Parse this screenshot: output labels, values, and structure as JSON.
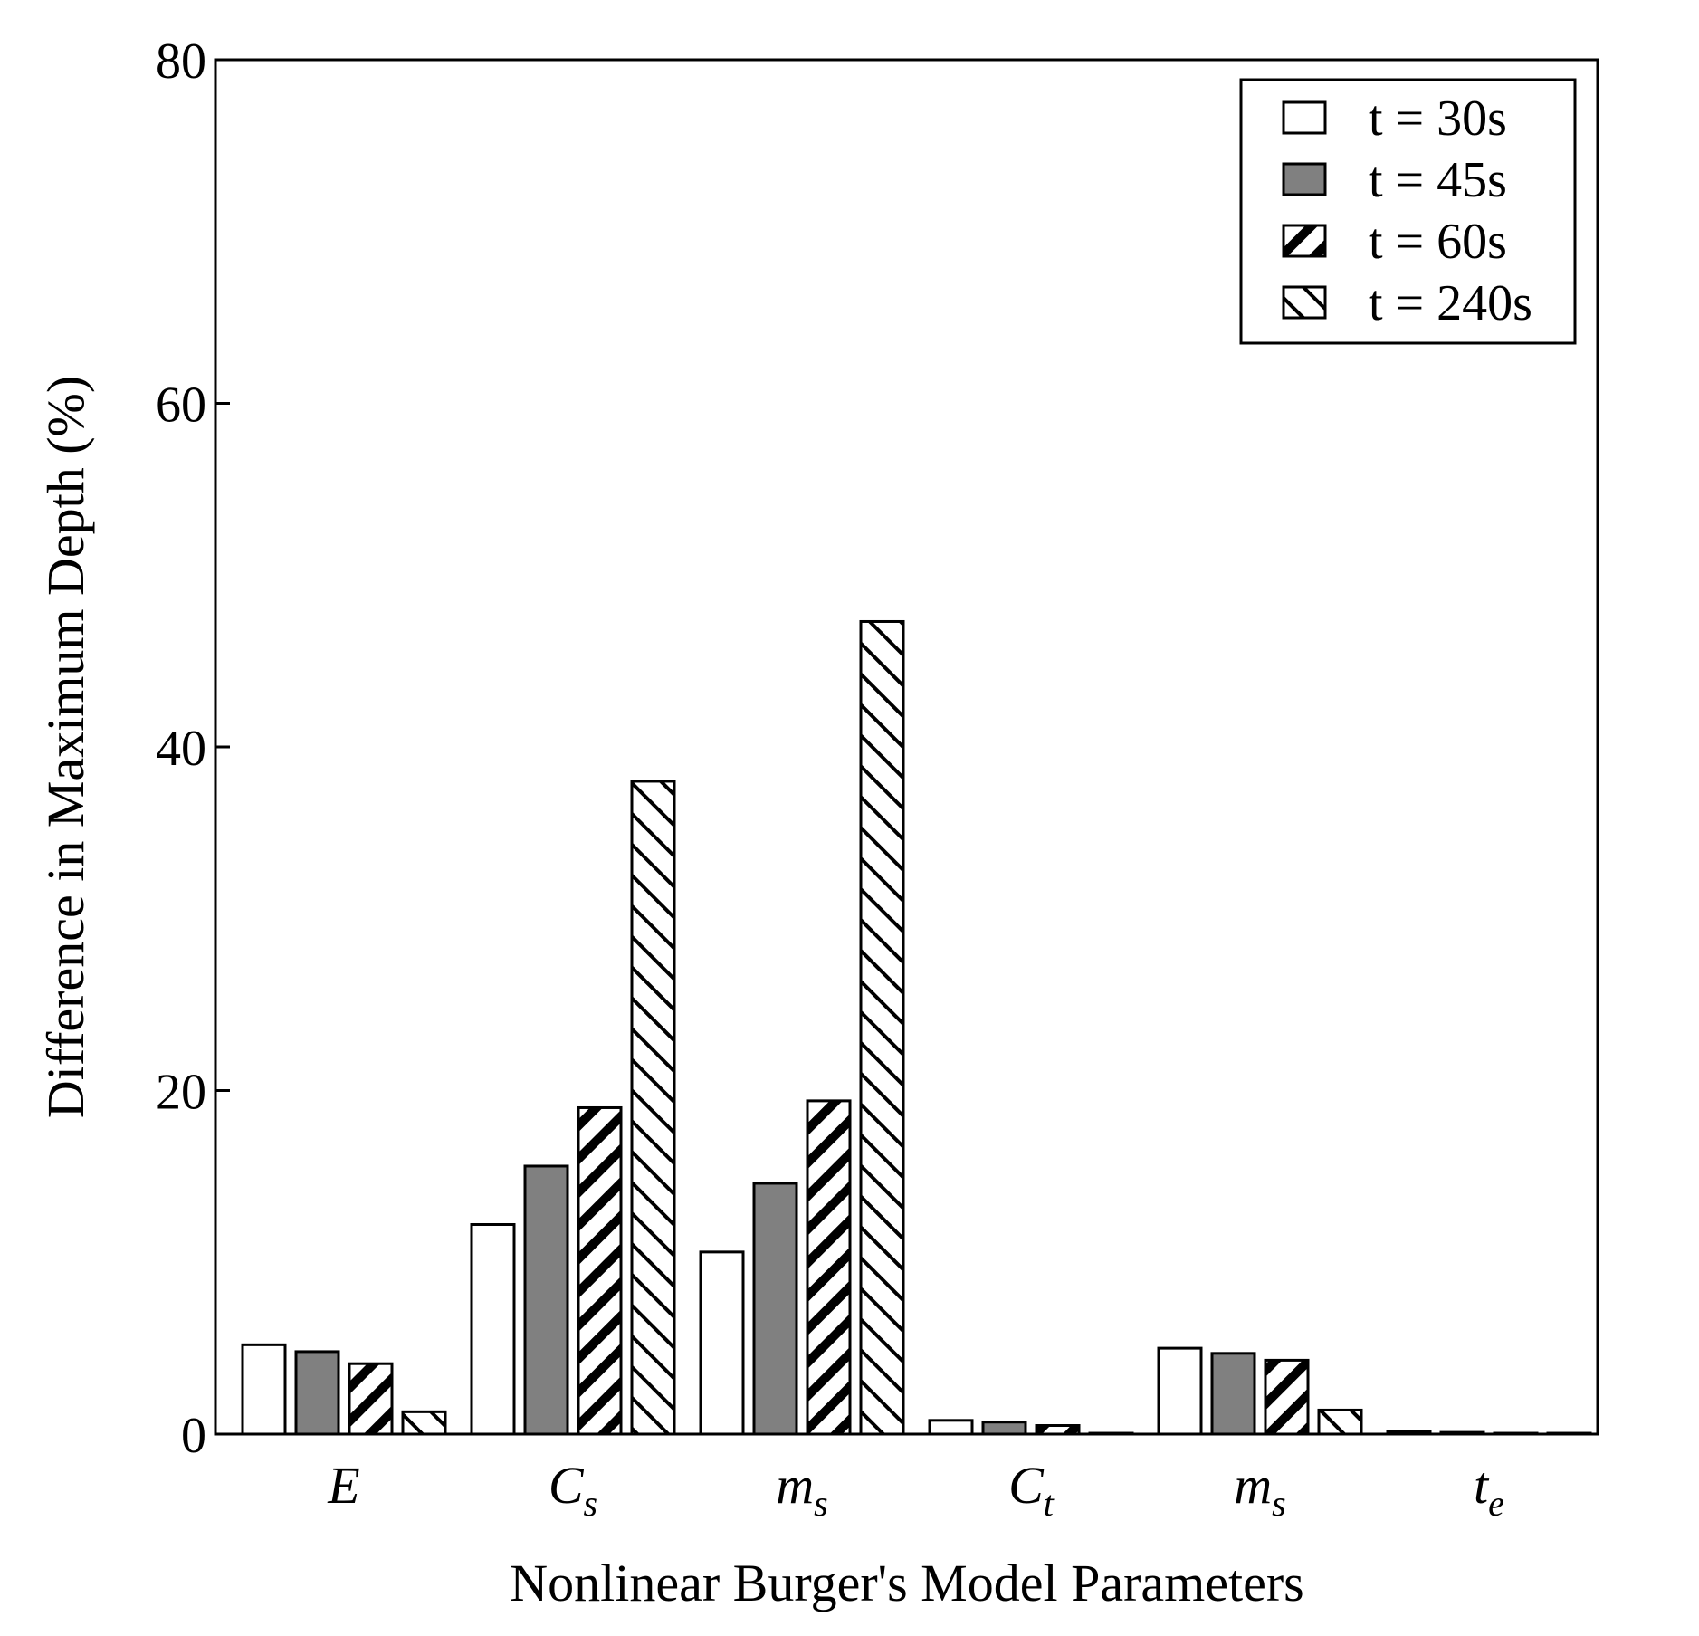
{
  "chart_data": {
    "type": "bar",
    "categories": [
      {
        "main": "E",
        "sub": ""
      },
      {
        "main": "C",
        "sub": "s"
      },
      {
        "main": "m",
        "sub": "s"
      },
      {
        "main": "C",
        "sub": "t"
      },
      {
        "main": "m",
        "sub": "s"
      },
      {
        "main": "t",
        "sub": "e"
      }
    ],
    "series": [
      {
        "name": "t = 30s",
        "fill": "#ffffff",
        "hatch": "none",
        "values": [
          5.2,
          12.2,
          10.6,
          0.8,
          5.0,
          0.15
        ]
      },
      {
        "name": "t = 45s",
        "fill": "#808080",
        "hatch": "none",
        "values": [
          4.8,
          15.6,
          14.6,
          0.7,
          4.7,
          0.1
        ]
      },
      {
        "name": "t = 60s",
        "fill": "#ffffff",
        "hatch": "thick-forward",
        "values": [
          4.1,
          19.0,
          19.4,
          0.5,
          4.3,
          0.05
        ]
      },
      {
        "name": "t = 240s",
        "fill": "#ffffff",
        "hatch": "thin-back",
        "values": [
          1.3,
          38.0,
          47.3,
          0.05,
          1.4,
          0.05
        ]
      }
    ],
    "xlabel": "Nonlinear Burger's Model Parameters",
    "ylabel": "Difference in Maximum Depth (%)",
    "ylim": [
      0,
      80
    ],
    "yticks": [
      "0",
      "20",
      "40",
      "60",
      "80"
    ],
    "grid": false,
    "legend_position": "top-right"
  }
}
